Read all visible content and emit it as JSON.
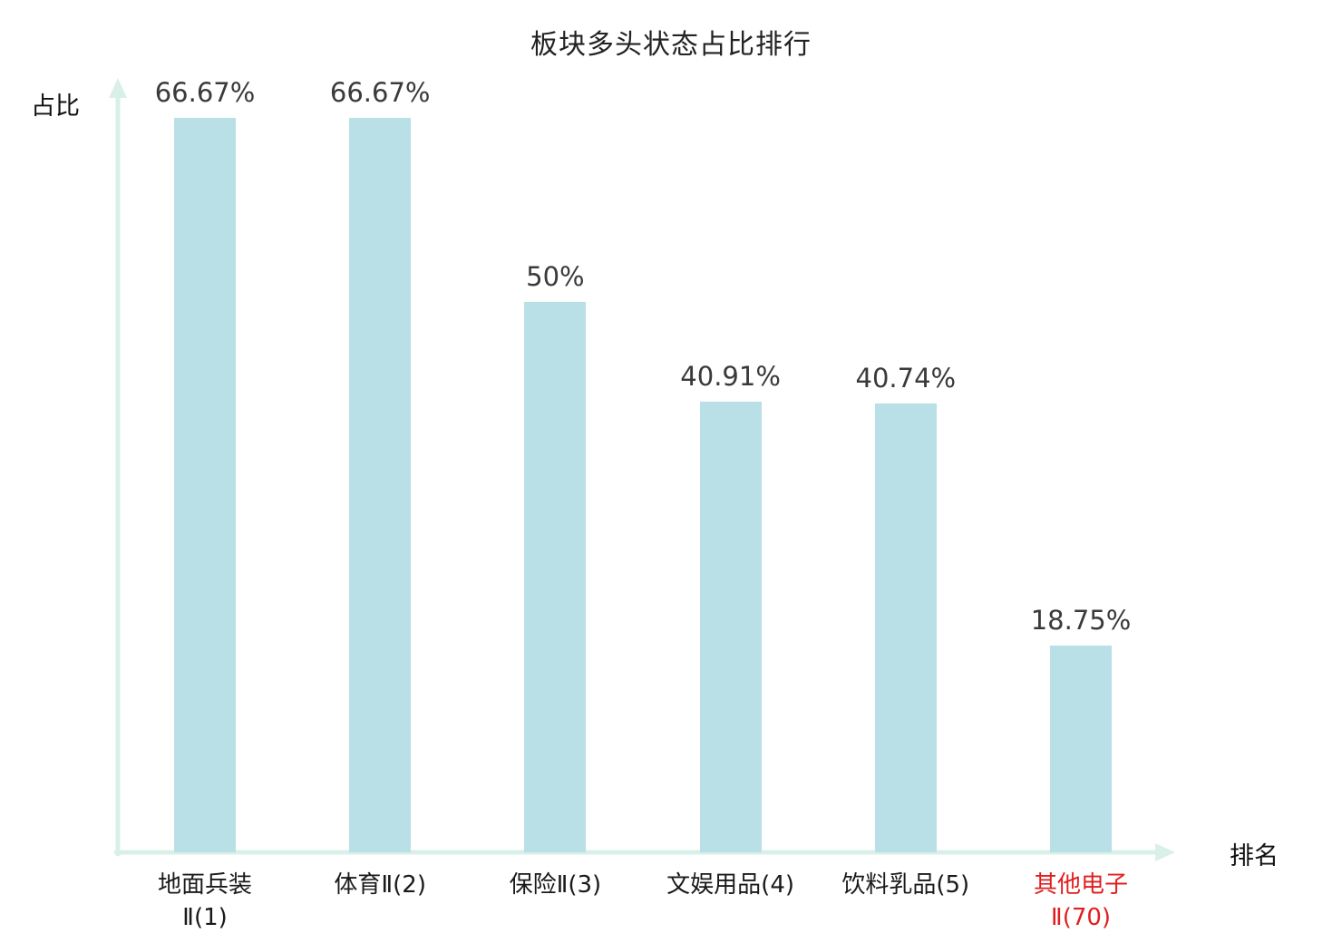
{
  "title": "板块多头状态占比排行",
  "y_axis_label": "占比",
  "x_axis_label": "排名",
  "chart_data": {
    "type": "bar",
    "title": "板块多头状态占比排行",
    "xlabel": "排名",
    "ylabel": "占比",
    "categories": [
      "地面兵装Ⅱ(1)",
      "体育Ⅱ(2)",
      "保险Ⅱ(3)",
      "文娱用品(4)",
      "饮料乳品(5)",
      "其他电子Ⅱ(70)"
    ],
    "values": [
      66.67,
      66.67,
      50,
      40.91,
      40.74,
      18.75
    ],
    "value_labels": [
      "66.67%",
      "66.67%",
      "50%",
      "40.91%",
      "40.74%",
      "18.75%"
    ],
    "category_label_lines": [
      [
        "地面兵装",
        "Ⅱ(1)"
      ],
      [
        "体育Ⅱ(2)"
      ],
      [
        "保险Ⅱ(3)"
      ],
      [
        "文娱用品(4)"
      ],
      [
        "饮料乳品(5)"
      ],
      [
        "其他电子",
        "Ⅱ(70)"
      ]
    ],
    "category_label_colors": [
      "#1a1a1a",
      "#1a1a1a",
      "#1a1a1a",
      "#1a1a1a",
      "#1a1a1a",
      "#e02020"
    ],
    "bar_color": "#b9e0e6",
    "axis_color": "#d9f0e8",
    "value_label_color": "#3a3a3a",
    "ylim": [
      0,
      70
    ],
    "grid": false,
    "legend": false
  }
}
